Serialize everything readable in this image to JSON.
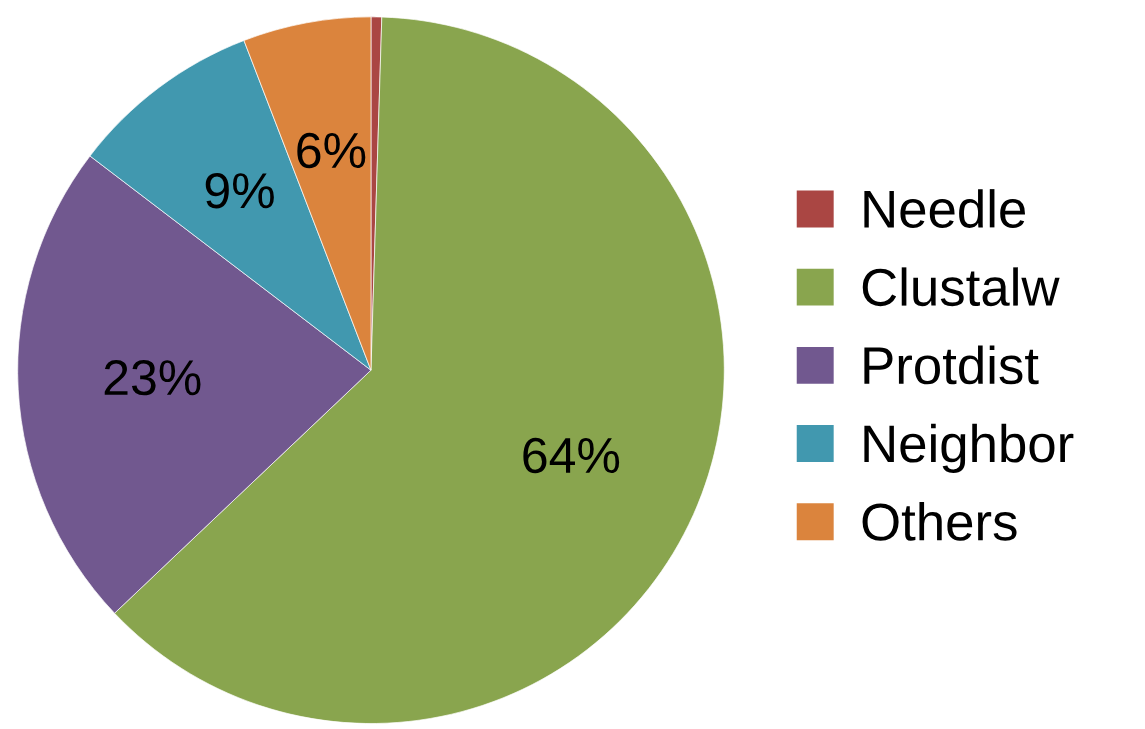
{
  "chart_data": {
    "type": "pie",
    "categories": [
      "Needle",
      "Clustalw",
      "Protdist",
      "Neighbor",
      "Others"
    ],
    "values": [
      0.5,
      64,
      23,
      9,
      6
    ],
    "colors": [
      "#aa4643",
      "#89a54e",
      "#71588f",
      "#4198af",
      "#db843d"
    ],
    "value_labels": [
      null,
      "64%",
      "23%",
      "9%",
      "6%"
    ],
    "legend": "right"
  }
}
